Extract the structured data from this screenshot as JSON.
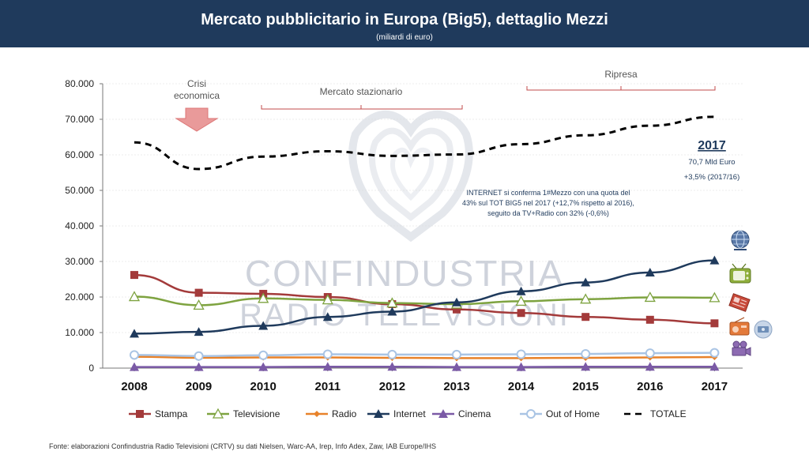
{
  "header": {
    "title": "Mercato pubblicitario in Europa (Big5), dettaglio Mezzi",
    "subtitle": "(miliardi di euro)"
  },
  "watermark": {
    "line1": "CONFINDUSTRIA",
    "line2": "RADIO TELEVISIONI"
  },
  "annotations": {
    "crisi_line1": "Crisi",
    "crisi_line2": "economica",
    "stazionario": "Mercato stazionario",
    "ripresa": "Ripresa",
    "total_year": "2017",
    "total_value": "70,7 Mld Euro",
    "total_change": "+3,5% (2017/16)",
    "note_line1": "INTERNET si conferma 1#Mezzo  con una quota del",
    "note_line2": "43% sul TOT BIG5 nel 2017  (+12,7% rispetto al 2016),",
    "note_line3": "seguito da TV+Radio con 32%  (-0,6%)"
  },
  "footer": {
    "source": "Fonte: elaborazioni Confindustria Radio Televisioni (CRTV) su dati Nielsen, Warc-AA, Irep, Info Adex, Zaw, IAB Europe/IHS"
  },
  "icons": [
    "globe-icon",
    "tv-icon",
    "newspaper-icon",
    "radio-icon",
    "cd-icon",
    "movie-camera-icon"
  ],
  "chart_data": {
    "type": "line",
    "categories": [
      "2008",
      "2009",
      "2010",
      "2011",
      "2012",
      "2013",
      "2014",
      "2015",
      "2016",
      "2017"
    ],
    "ylim": [
      0,
      80000
    ],
    "yticks": [
      0,
      10000,
      20000,
      30000,
      40000,
      50000,
      60000,
      70000,
      80000
    ],
    "ytick_labels": [
      "0",
      "10.000",
      "20.000",
      "30.000",
      "40.000",
      "50.000",
      "60.000",
      "70.000",
      "80.000"
    ],
    "legend_position": "bottom",
    "series": [
      {
        "name": "Stampa",
        "color": "#a33a3a",
        "marker": "square",
        "values": [
          26200,
          21200,
          20900,
          20000,
          18000,
          16500,
          15500,
          14400,
          13600,
          12600
        ]
      },
      {
        "name": "Televisione",
        "color": "#7ea340",
        "marker": "triangle-open",
        "values": [
          20100,
          17700,
          19600,
          19200,
          18300,
          18000,
          18800,
          19400,
          19900,
          19800
        ]
      },
      {
        "name": "Radio",
        "color": "#e8822a",
        "marker": "diamond",
        "values": [
          3200,
          2900,
          3000,
          3000,
          2900,
          2800,
          2800,
          2900,
          3000,
          3100
        ]
      },
      {
        "name": "Internet",
        "color": "#1f3a5c",
        "marker": "triangle",
        "values": [
          9700,
          10200,
          11900,
          14400,
          15900,
          18500,
          21600,
          24100,
          26900,
          30300
        ]
      },
      {
        "name": "Cinema",
        "color": "#7b5aa6",
        "marker": "triangle",
        "values": [
          300,
          300,
          300,
          400,
          400,
          300,
          300,
          400,
          400,
          400
        ]
      },
      {
        "name": "Out of Home",
        "color": "#a9c4e4",
        "marker": "circle-open",
        "values": [
          3700,
          3400,
          3600,
          3900,
          3800,
          3800,
          3900,
          4000,
          4200,
          4300
        ]
      },
      {
        "name": "TOTALE",
        "color": "#000000",
        "marker": "none",
        "dashed": true,
        "values": [
          63500,
          56000,
          59500,
          61000,
          59700,
          60100,
          63000,
          65500,
          68200,
          70700
        ]
      }
    ]
  }
}
